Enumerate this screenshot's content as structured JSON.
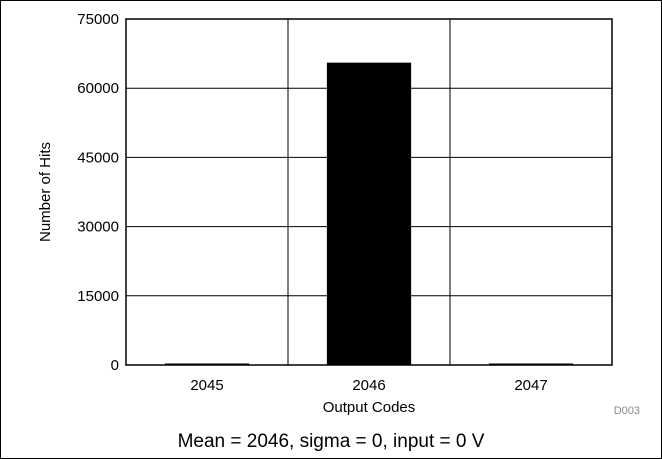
{
  "chart_data": {
    "type": "bar",
    "categories": [
      "2045",
      "2046",
      "2047"
    ],
    "values": [
      0,
      65536,
      0
    ],
    "xlabel": "Output Codes",
    "ylabel": "Number of Hits",
    "ylim": [
      0,
      75000
    ],
    "yticks": [
      "0",
      "15000",
      "30000",
      "45000",
      "60000",
      "75000"
    ],
    "grid": true,
    "bar_color": "#000000",
    "figure_id": "D003",
    "caption": "Mean = 2046, sigma = 0, input = 0 V"
  }
}
